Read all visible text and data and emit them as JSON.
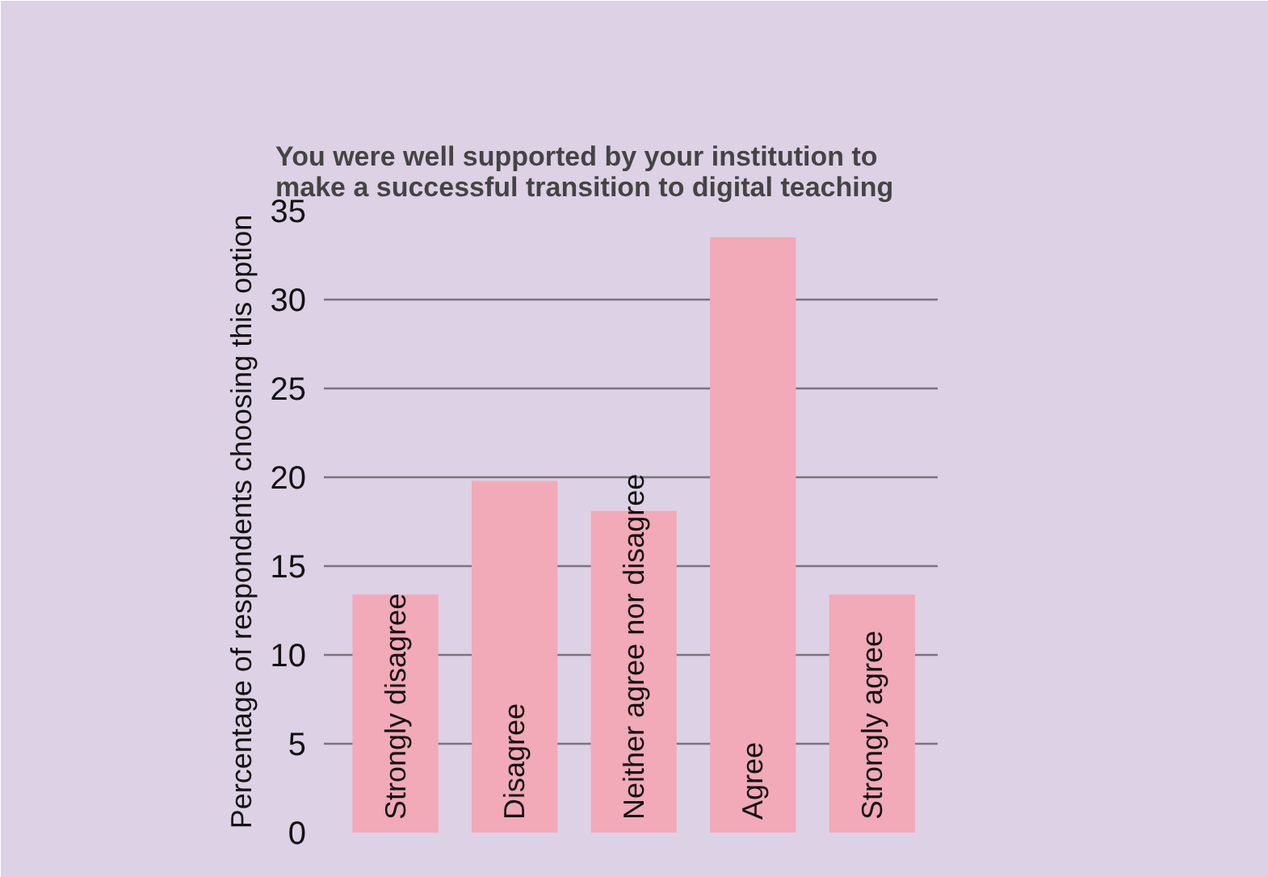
{
  "chart_data": {
    "type": "bar",
    "title": "You were well supported by your institution to\nmake a successful transition to digital teaching",
    "ylabel": "Percentage of respondents choosing this option",
    "categories": [
      "Strongly disagree",
      "Disagree",
      "Neither agree nor disagree",
      "Agree",
      "Strongly agree"
    ],
    "values": [
      13.4,
      19.8,
      18.1,
      33.5,
      13.4
    ],
    "color": "#f2a9b8",
    "ylim": [
      0,
      35
    ],
    "yticks": [
      0,
      5,
      10,
      15,
      20,
      25,
      30,
      35
    ],
    "grid": "y"
  }
}
